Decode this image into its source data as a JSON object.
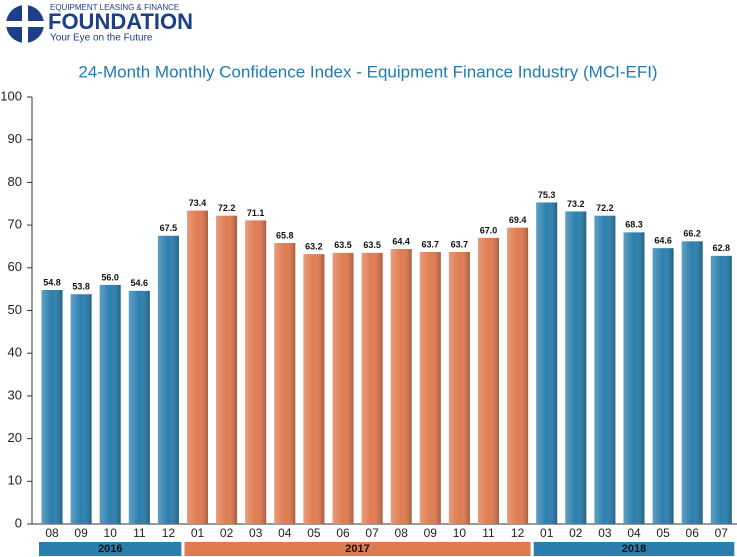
{
  "logo": {
    "tagline_top": "EQUIPMENT LEASING & FINANCE",
    "name": "FOUNDATION",
    "slogan": "Your Eye on the Future"
  },
  "chart_data": {
    "type": "bar",
    "title": "24-Month Monthly Confidence Index - Equipment Finance Industry (MCI-EFI)",
    "ylim": [
      0,
      100
    ],
    "yticks": [
      0,
      10,
      20,
      30,
      40,
      50,
      60,
      70,
      80,
      90,
      100
    ],
    "series": [
      {
        "name": "2016",
        "color": "#2b7fae",
        "categories": [
          "08",
          "09",
          "10",
          "11",
          "12"
        ],
        "values": [
          54.8,
          53.8,
          56.0,
          54.6,
          67.5
        ],
        "value_labels": [
          "54.8",
          "53.8",
          "56.0",
          "54.6",
          "67.5"
        ]
      },
      {
        "name": "2017",
        "color": "#e07b50",
        "categories": [
          "01",
          "02",
          "03",
          "04",
          "05",
          "06",
          "07",
          "08",
          "09",
          "10",
          "11",
          "12"
        ],
        "values": [
          73.4,
          72.2,
          71.1,
          65.8,
          63.2,
          63.5,
          63.5,
          64.4,
          63.7,
          63.7,
          67.0,
          69.4
        ],
        "value_labels": [
          "73.4",
          "72.2",
          "71.1",
          "65.8",
          "63.2",
          "63.5",
          "63.5",
          "64.4",
          "63.7",
          "63.7",
          "67.0",
          "69.4"
        ]
      },
      {
        "name": "2018",
        "color": "#2b7fae",
        "categories": [
          "01",
          "02",
          "03",
          "04",
          "05",
          "06",
          "07"
        ],
        "values": [
          75.3,
          73.2,
          72.2,
          68.3,
          64.6,
          66.2,
          62.8
        ],
        "value_labels": [
          "75.3",
          "73.2",
          "72.2",
          "68.3",
          "64.6",
          "66.2",
          "62.8"
        ]
      }
    ]
  }
}
